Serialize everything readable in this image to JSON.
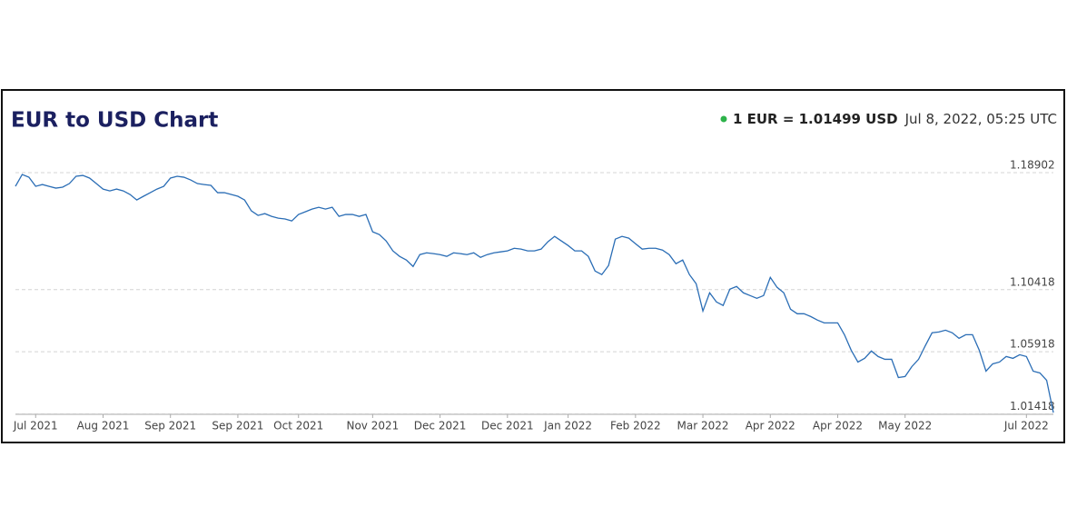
{
  "chart_data": {
    "type": "line",
    "title": "EUR to USD Chart",
    "rate": "1 EUR = 1.01499 USD",
    "timestamp": "Jul 8, 2022, 05:25 UTC",
    "categories": [
      null,
      null,
      null,
      "Jul 2021",
      null,
      null,
      null,
      null,
      null,
      null,
      null,
      null,
      null,
      "Aug 2021",
      null,
      null,
      null,
      null,
      null,
      null,
      null,
      null,
      null,
      "Sep 2021",
      null,
      null,
      null,
      null,
      null,
      null,
      null,
      null,
      null,
      "Sep 2021",
      null,
      null,
      null,
      null,
      null,
      null,
      null,
      null,
      "Oct 2021",
      null,
      null,
      null,
      null,
      null,
      null,
      null,
      null,
      null,
      null,
      "Nov 2021",
      null,
      null,
      null,
      null,
      null,
      null,
      null,
      null,
      null,
      "Dec 2021",
      null,
      null,
      null,
      null,
      null,
      null,
      null,
      null,
      null,
      "Dec 2021",
      null,
      null,
      null,
      null,
      null,
      null,
      null,
      null,
      "Jan 2022",
      null,
      null,
      null,
      null,
      null,
      null,
      null,
      null,
      null,
      "Feb 2022",
      null,
      null,
      null,
      null,
      null,
      null,
      null,
      null,
      null,
      "Mar 2022",
      null,
      null,
      null,
      null,
      null,
      null,
      null,
      null,
      null,
      "Apr 2022",
      null,
      null,
      null,
      null,
      null,
      null,
      null,
      null,
      null,
      "Apr 2022",
      null,
      null,
      null,
      null,
      null,
      null,
      null,
      null,
      null,
      "May 2022",
      null,
      null,
      null,
      null,
      null,
      null,
      null,
      null,
      null,
      null,
      null,
      null,
      null,
      null,
      null,
      null,
      null,
      "Jul 2022",
      null,
      null,
      null,
      null
    ],
    "series": [
      {
        "name": "EUR/USD",
        "color": "#2a6db5",
        "values": [
          1.1791,
          1.1877,
          1.1857,
          1.1791,
          1.1804,
          1.1791,
          1.1778,
          1.1785,
          1.1811,
          1.1864,
          1.187,
          1.1851,
          1.1811,
          1.1771,
          1.1758,
          1.1771,
          1.1758,
          1.1732,
          1.1692,
          1.1719,
          1.1745,
          1.1771,
          1.1791,
          1.1851,
          1.1864,
          1.1857,
          1.1837,
          1.1811,
          1.1804,
          1.1798,
          1.1745,
          1.1745,
          1.1732,
          1.1719,
          1.1692,
          1.1613,
          1.158,
          1.1593,
          1.1573,
          1.156,
          1.1554,
          1.154,
          1.1587,
          1.1606,
          1.1626,
          1.1639,
          1.1626,
          1.1639,
          1.1573,
          1.1587,
          1.1587,
          1.1573,
          1.1587,
          1.1461,
          1.1441,
          1.1395,
          1.1323,
          1.1283,
          1.1257,
          1.121,
          1.1296,
          1.1309,
          1.1303,
          1.1296,
          1.1283,
          1.1309,
          1.1303,
          1.1296,
          1.1309,
          1.1276,
          1.1296,
          1.1309,
          1.1316,
          1.1323,
          1.1342,
          1.1336,
          1.1323,
          1.1323,
          1.1336,
          1.1389,
          1.1428,
          1.1395,
          1.1362,
          1.1323,
          1.1323,
          1.1283,
          1.1177,
          1.1151,
          1.1217,
          1.1408,
          1.1428,
          1.1415,
          1.1375,
          1.1336,
          1.1342,
          1.1342,
          1.1329,
          1.1296,
          1.123,
          1.1257,
          1.1151,
          1.1085,
          1.0887,
          1.1019,
          1.0953,
          1.0927,
          1.1045,
          1.1065,
          1.1019,
          1.0999,
          1.0979,
          1.0999,
          1.1131,
          1.1059,
          1.1019,
          1.09,
          1.0867,
          1.0867,
          1.0847,
          1.0821,
          1.0801,
          1.0801,
          1.0801,
          1.0715,
          1.0603,
          1.0517,
          1.0544,
          1.0597,
          1.0557,
          1.0537,
          1.0537,
          1.0405,
          1.0412,
          1.0484,
          1.0537,
          1.0636,
          1.0729,
          1.0735,
          1.0748,
          1.0729,
          1.0689,
          1.0715,
          1.0715,
          1.0603,
          1.0451,
          1.0504,
          1.0517,
          1.0557,
          1.0544,
          1.057,
          1.0557,
          1.0451,
          1.0438,
          1.0385,
          1.015
        ]
      }
    ],
    "ylim": [
      1.0138,
      1.2022
    ],
    "yticks": [
      1.18902,
      1.10418,
      1.05918,
      1.01418
    ],
    "grid": true
  }
}
